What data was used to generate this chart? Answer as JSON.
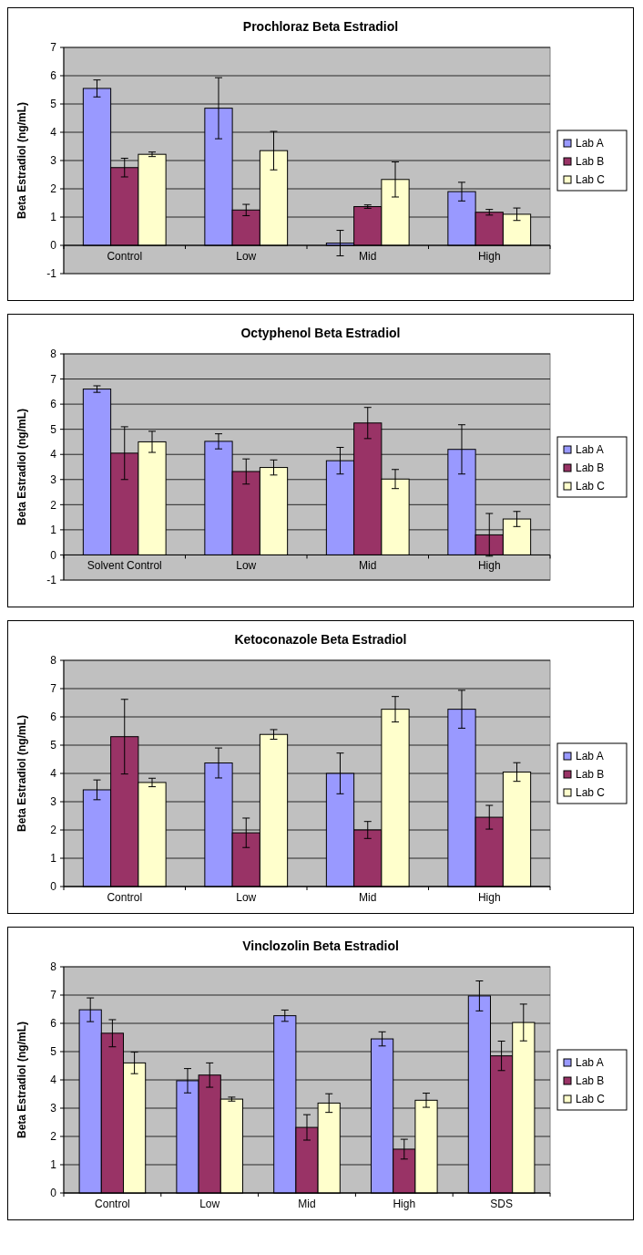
{
  "chart_data": [
    {
      "type": "bar",
      "title": "Prochloraz Beta Estradiol",
      "ylabel": "Beta Estradiol (ng/mL)",
      "categories": [
        "Control",
        "Low",
        "Mid",
        "High"
      ],
      "ylim": [
        -1,
        7
      ],
      "yticks": [
        -1,
        0,
        1,
        2,
        3,
        4,
        5,
        6,
        7
      ],
      "grid": "y",
      "legend": "right",
      "series": [
        {
          "name": "Lab A",
          "color": "#9999ff",
          "values": [
            5.55,
            4.85,
            0.08,
            1.9
          ],
          "errors": [
            0.3,
            1.08,
            0.45,
            0.33
          ]
        },
        {
          "name": "Lab B",
          "color": "#993366",
          "values": [
            2.75,
            1.25,
            1.37,
            1.17
          ],
          "errors": [
            0.33,
            0.2,
            0.06,
            0.1
          ]
        },
        {
          "name": "Lab C",
          "color": "#ffffcc",
          "values": [
            3.22,
            3.35,
            2.33,
            1.1
          ],
          "errors": [
            0.08,
            0.68,
            0.62,
            0.22
          ]
        }
      ]
    },
    {
      "type": "bar",
      "title": "Octyphenol Beta Estradiol",
      "ylabel": "Beta Estradiol (ng/mL)",
      "categories": [
        "Solvent Control",
        "Low",
        "Mid",
        "High"
      ],
      "ylim": [
        -1,
        8
      ],
      "yticks": [
        -1,
        0,
        1,
        2,
        3,
        4,
        5,
        6,
        7,
        8
      ],
      "grid": "y",
      "legend": "right",
      "series": [
        {
          "name": "Lab A",
          "color": "#9999ff",
          "values": [
            6.6,
            4.52,
            3.75,
            4.2
          ],
          "errors": [
            0.13,
            0.3,
            0.53,
            0.98
          ]
        },
        {
          "name": "Lab B",
          "color": "#993366",
          "values": [
            4.05,
            3.32,
            5.25,
            0.8
          ],
          "errors": [
            1.05,
            0.5,
            0.62,
            0.85
          ]
        },
        {
          "name": "Lab C",
          "color": "#ffffcc",
          "values": [
            4.5,
            3.48,
            3.02,
            1.43
          ],
          "errors": [
            0.42,
            0.3,
            0.38,
            0.3
          ]
        }
      ]
    },
    {
      "type": "bar",
      "title": "Ketoconazole Beta Estradiol",
      "ylabel": "Beta Estradiol (ng/mL)",
      "categories": [
        "Control",
        "Low",
        "Mid",
        "High"
      ],
      "ylim": [
        0,
        8
      ],
      "yticks": [
        0,
        1,
        2,
        3,
        4,
        5,
        6,
        7,
        8
      ],
      "grid": "y",
      "legend": "right",
      "series": [
        {
          "name": "Lab A",
          "color": "#9999ff",
          "values": [
            3.42,
            4.37,
            4.0,
            6.27
          ],
          "errors": [
            0.35,
            0.53,
            0.72,
            0.67
          ]
        },
        {
          "name": "Lab B",
          "color": "#993366",
          "values": [
            5.3,
            1.9,
            2.0,
            2.45
          ],
          "errors": [
            1.32,
            0.52,
            0.3,
            0.42
          ]
        },
        {
          "name": "Lab C",
          "color": "#ffffcc",
          "values": [
            3.68,
            5.38,
            6.27,
            4.05
          ],
          "errors": [
            0.15,
            0.17,
            0.45,
            0.33
          ]
        }
      ]
    },
    {
      "type": "bar",
      "title": "Vinclozolin Beta Estradiol",
      "ylabel": "Beta Estradiol (ng/mL)",
      "categories": [
        "Control",
        "Low",
        "Mid",
        "High",
        "SDS"
      ],
      "ylim": [
        0,
        8
      ],
      "yticks": [
        0,
        1,
        2,
        3,
        4,
        5,
        6,
        7,
        8
      ],
      "grid": "y",
      "legend": "right",
      "series": [
        {
          "name": "Lab A",
          "color": "#9999ff",
          "values": [
            6.48,
            3.97,
            6.27,
            5.45,
            6.97
          ],
          "errors": [
            0.42,
            0.43,
            0.2,
            0.25,
            0.53
          ]
        },
        {
          "name": "Lab B",
          "color": "#993366",
          "values": [
            5.65,
            4.17,
            2.32,
            1.55,
            4.85
          ],
          "errors": [
            0.48,
            0.43,
            0.45,
            0.35,
            0.52
          ]
        },
        {
          "name": "Lab C",
          "color": "#ffffcc",
          "values": [
            4.6,
            3.32,
            3.18,
            3.28,
            6.03
          ],
          "errors": [
            0.38,
            0.07,
            0.33,
            0.25,
            0.65
          ]
        }
      ]
    }
  ]
}
